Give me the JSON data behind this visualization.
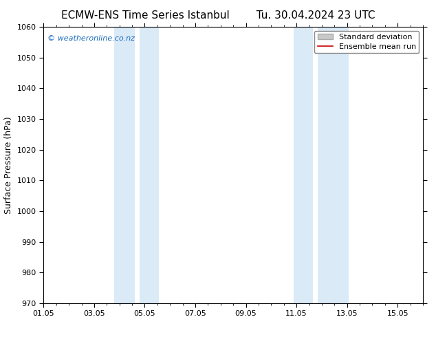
{
  "title_left": "ECMW-ENS Time Series Istanbul",
  "title_right": "Tu. 30.04.2024 23 UTC",
  "ylabel": "Surface Pressure (hPa)",
  "ylim": [
    970,
    1060
  ],
  "yticks": [
    970,
    980,
    990,
    1000,
    1010,
    1020,
    1030,
    1040,
    1050,
    1060
  ],
  "xlim_start": 1,
  "xlim_end": 16,
  "xtick_labels": [
    "01.05",
    "03.05",
    "05.05",
    "07.05",
    "09.05",
    "11.05",
    "13.05",
    "15.05"
  ],
  "xtick_positions": [
    1,
    3,
    5,
    7,
    9,
    11,
    13,
    15
  ],
  "shaded_bands": [
    {
      "x_start": 4.0,
      "x_end": 4.7,
      "gap": true
    },
    {
      "x_start": 4.9,
      "x_end": 5.6
    },
    {
      "x_start": 11.0,
      "x_end": 11.7,
      "gap": true
    },
    {
      "x_start": 11.9,
      "x_end": 13.0
    }
  ],
  "shaded_color": "#daeaf7",
  "watermark_text": "© weatheronline.co.nz",
  "watermark_color": "#1a6bbd",
  "legend_items": [
    "Standard deviation",
    "Ensemble mean run"
  ],
  "legend_patch_color": "#c8c8c8",
  "legend_line_color": "#cc0000",
  "background_color": "#ffffff",
  "plot_bg_color": "#ffffff",
  "title_fontsize": 11,
  "axis_label_fontsize": 9,
  "tick_fontsize": 8,
  "watermark_fontsize": 8,
  "legend_fontsize": 8
}
